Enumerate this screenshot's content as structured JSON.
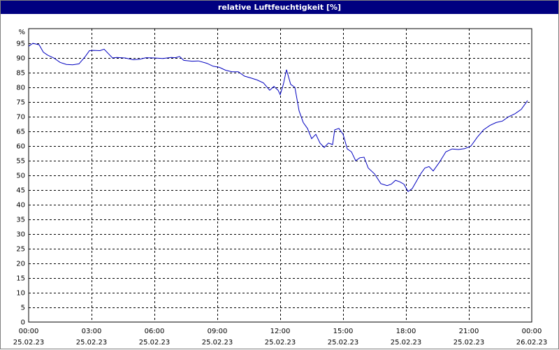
{
  "window": {
    "title": "relative Luftfeuchtigkeit [%]"
  },
  "chart_data": {
    "type": "line",
    "title": "relative Luftfeuchtigkeit [%]",
    "y_unit_label": "%",
    "ylim": [
      0,
      100
    ],
    "yticks": [
      0,
      5,
      10,
      15,
      20,
      25,
      30,
      35,
      40,
      45,
      50,
      55,
      60,
      65,
      70,
      75,
      80,
      85,
      90,
      95
    ],
    "xlim_hours": [
      0,
      24
    ],
    "x_ticks": [
      {
        "h": 0,
        "time": "00:00",
        "date": "25.02.23"
      },
      {
        "h": 3,
        "time": "03:00",
        "date": "25.02.23"
      },
      {
        "h": 6,
        "time": "06:00",
        "date": "25.02.23"
      },
      {
        "h": 9,
        "time": "09:00",
        "date": "25.02.23"
      },
      {
        "h": 12,
        "time": "12:00",
        "date": "25.02.23"
      },
      {
        "h": 15,
        "time": "15:00",
        "date": "25.02.23"
      },
      {
        "h": 18,
        "time": "18:00",
        "date": "25.02.23"
      },
      {
        "h": 21,
        "time": "21:00",
        "date": "25.02.23"
      },
      {
        "h": 24,
        "time": "00:00",
        "date": "26.02.23"
      }
    ],
    "grid": true,
    "series": [
      {
        "color": "#0000c0",
        "x_hours": [
          0,
          0.2,
          0.5,
          0.7,
          0.9,
          1.2,
          1.5,
          1.8,
          2.1,
          2.4,
          2.7,
          2.9,
          3.1,
          3.4,
          3.6,
          3.8,
          4.0,
          4.2,
          4.6,
          5.0,
          5.3,
          5.6,
          6.0,
          6.4,
          6.8,
          7.0,
          7.2,
          7.4,
          7.8,
          8.1,
          8.5,
          8.8,
          9.1,
          9.4,
          9.7,
          10.0,
          10.3,
          10.6,
          10.9,
          11.2,
          11.5,
          11.7,
          11.9,
          12.0,
          12.15,
          12.3,
          12.5,
          12.7,
          12.9,
          13.1,
          13.3,
          13.5,
          13.7,
          13.9,
          14.1,
          14.3,
          14.5,
          14.6,
          14.8,
          15.0,
          15.2,
          15.4,
          15.6,
          15.8,
          16.0,
          16.2,
          16.5,
          16.8,
          17.1,
          17.3,
          17.5,
          17.7,
          17.9,
          18.1,
          18.3,
          18.5,
          18.7,
          18.9,
          19.1,
          19.3,
          19.6,
          19.9,
          20.2,
          20.5,
          20.8,
          21.1,
          21.4,
          21.7,
          22.0,
          22.3,
          22.6,
          22.9,
          23.2,
          23.5,
          23.8
        ],
        "y": [
          94,
          95,
          94.5,
          92,
          91,
          90,
          88.5,
          87.8,
          87.7,
          88,
          90.5,
          92.5,
          92.6,
          92.5,
          93,
          91.5,
          90,
          90.2,
          90,
          89.4,
          89.6,
          90.1,
          90,
          89.8,
          90.2,
          90.1,
          90.5,
          89.2,
          88.9,
          89,
          88.2,
          87.2,
          86.8,
          85.8,
          85.3,
          85.3,
          83.8,
          83.2,
          82.5,
          81.5,
          79,
          80.3,
          79,
          77.5,
          81,
          86,
          81,
          80,
          72,
          68,
          66,
          62.5,
          64,
          61,
          59.5,
          61,
          60.5,
          65.5,
          66,
          64,
          59,
          58,
          55,
          56,
          56.2,
          52.5,
          50.5,
          47.2,
          46.5,
          47,
          48.3,
          47.8,
          47,
          44.5,
          45.5,
          48,
          50.5,
          52.5,
          53,
          51.5,
          54.5,
          58,
          59,
          58.8,
          59.1,
          60,
          63,
          65.5,
          67,
          68,
          68.5,
          70,
          71,
          72.5,
          75.5
        ]
      }
    ]
  }
}
